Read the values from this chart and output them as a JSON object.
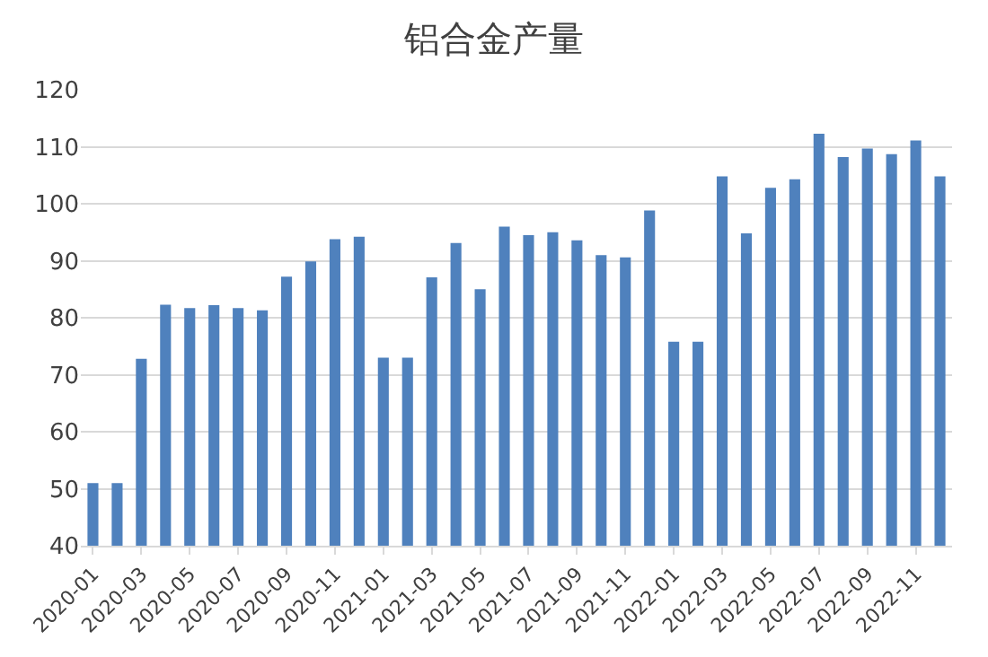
{
  "chart_data": {
    "type": "bar",
    "title": "铝合金产量",
    "categories": [
      "2020-01",
      null,
      "2020-03",
      null,
      "2020-05",
      null,
      "2020-07",
      null,
      "2020-09",
      null,
      "2020-11",
      null,
      "2021-01",
      null,
      "2021-03",
      null,
      "2021-05",
      null,
      "2021-07",
      null,
      "2021-09",
      null,
      "2021-11",
      null,
      "2022-01",
      null,
      "2022-03",
      null,
      "2022-05",
      null,
      "2022-07",
      null,
      "2022-09",
      null,
      "2022-11",
      null
    ],
    "values": [
      51,
      51,
      72.8,
      82.3,
      81.7,
      82.2,
      81.7,
      81.3,
      87.2,
      89.9,
      93.8,
      94.2,
      73,
      73,
      87.1,
      93.1,
      85,
      96,
      94.5,
      95,
      93.6,
      91,
      90.6,
      98.8,
      75.8,
      75.8,
      104.8,
      94.8,
      102.8,
      104.3,
      112.3,
      108.2,
      109.7,
      108.7,
      111.1,
      104.8
    ],
    "color": "#4f81bd",
    "ylim": [
      40,
      120
    ],
    "yticks": [
      40,
      50,
      60,
      70,
      80,
      90,
      100,
      110,
      120
    ],
    "grid": "y"
  }
}
